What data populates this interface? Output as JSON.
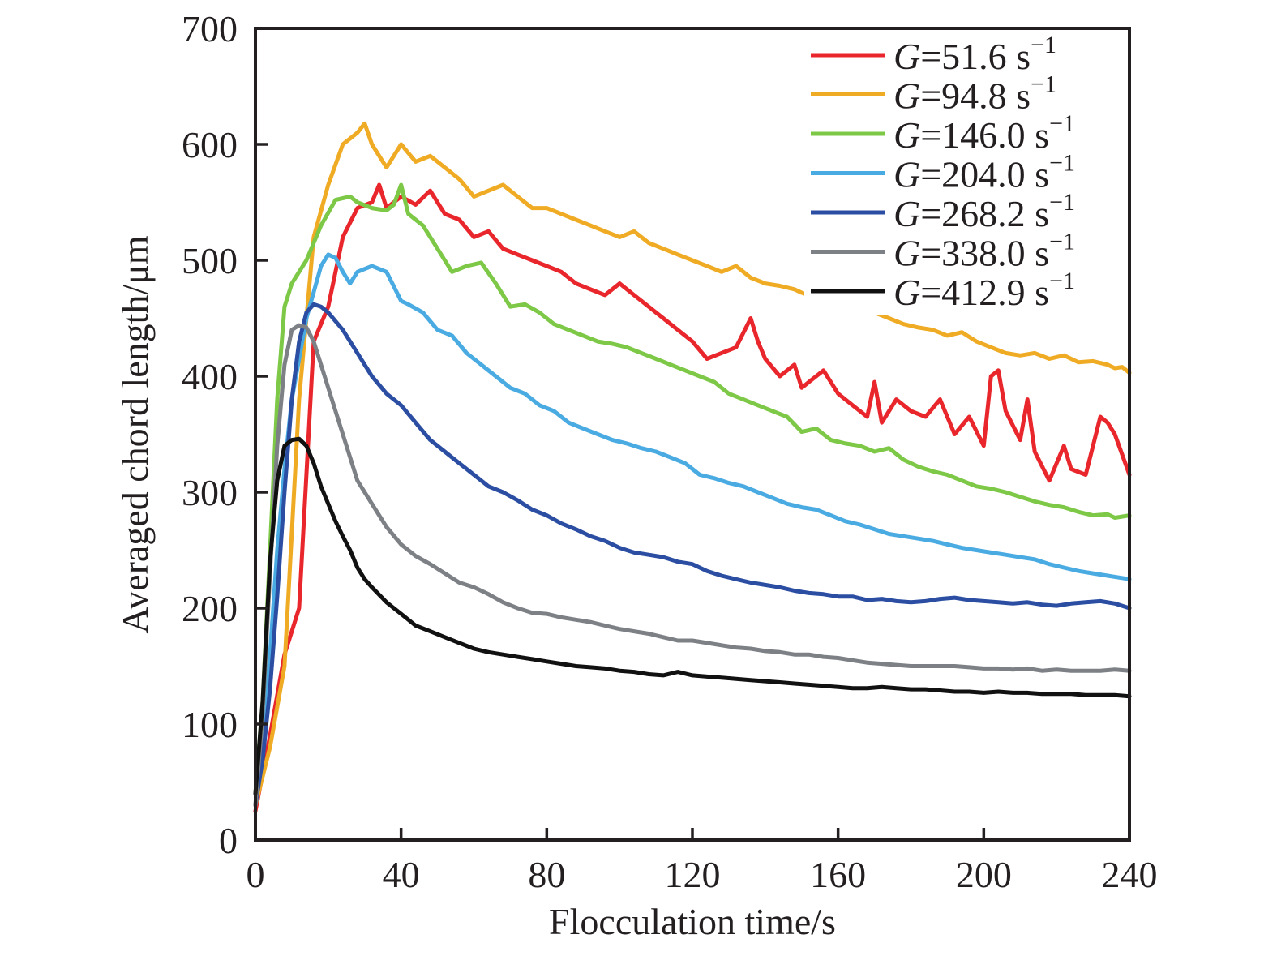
{
  "chart_data": {
    "type": "line",
    "title": "",
    "xlabel": "Flocculation time/s",
    "ylabel": "Averaged chord length/μm",
    "xlim": [
      0,
      240
    ],
    "ylim": [
      0,
      700
    ],
    "xticks": [
      0,
      40,
      80,
      120,
      160,
      200,
      240
    ],
    "yticks": [
      0,
      100,
      200,
      300,
      400,
      500,
      600,
      700
    ],
    "grid": false,
    "legend_position": "top-right",
    "legend_symbol": "G",
    "legend_unit": "s",
    "legend_unit_exp": "−1",
    "series": [
      {
        "name": "G=51.6 s−1",
        "g_value": "51.6",
        "color": "#e8262b",
        "x": [
          0,
          4,
          8,
          12,
          16,
          20,
          24,
          28,
          32,
          34,
          36,
          40,
          44,
          48,
          52,
          56,
          60,
          64,
          68,
          72,
          76,
          80,
          84,
          88,
          92,
          96,
          100,
          104,
          108,
          112,
          116,
          120,
          124,
          128,
          132,
          136,
          138,
          140,
          144,
          148,
          150,
          152,
          156,
          160,
          164,
          168,
          170,
          172,
          176,
          180,
          184,
          188,
          192,
          196,
          200,
          202,
          204,
          206,
          210,
          212,
          214,
          218,
          222,
          224,
          228,
          232,
          234,
          236,
          240
        ],
        "y": [
          25,
          90,
          160,
          200,
          430,
          460,
          520,
          545,
          550,
          565,
          545,
          555,
          548,
          560,
          540,
          535,
          520,
          525,
          510,
          505,
          500,
          495,
          490,
          480,
          475,
          470,
          480,
          470,
          460,
          450,
          440,
          430,
          415,
          420,
          425,
          450,
          430,
          415,
          400,
          410,
          390,
          395,
          405,
          385,
          375,
          365,
          395,
          360,
          380,
          370,
          365,
          380,
          350,
          365,
          340,
          400,
          405,
          370,
          345,
          380,
          335,
          310,
          340,
          320,
          315,
          365,
          360,
          350,
          315
        ]
      },
      {
        "name": "G=94.8 s−1",
        "g_value": "94.8",
        "color": "#f0ab24",
        "x": [
          0,
          4,
          8,
          12,
          16,
          20,
          24,
          28,
          30,
          32,
          36,
          40,
          44,
          48,
          52,
          56,
          60,
          64,
          68,
          72,
          76,
          80,
          84,
          88,
          92,
          96,
          100,
          104,
          108,
          112,
          116,
          120,
          124,
          128,
          132,
          136,
          140,
          144,
          148,
          150,
          152,
          170,
          174,
          178,
          182,
          186,
          190,
          194,
          198,
          202,
          206,
          210,
          214,
          218,
          222,
          226,
          230,
          234,
          236,
          238,
          240
        ],
        "y": [
          30,
          80,
          150,
          380,
          520,
          565,
          600,
          610,
          618,
          600,
          580,
          600,
          585,
          590,
          580,
          570,
          555,
          560,
          565,
          555,
          545,
          545,
          540,
          535,
          530,
          525,
          520,
          525,
          515,
          510,
          505,
          500,
          495,
          490,
          495,
          485,
          480,
          478,
          475,
          472,
          470,
          455,
          450,
          445,
          442,
          440,
          435,
          438,
          430,
          425,
          420,
          418,
          420,
          415,
          418,
          412,
          413,
          410,
          407,
          408,
          403
        ]
      },
      {
        "name": "G=146.0 s−1",
        "g_value": "146.0",
        "color": "#7dc846",
        "x": [
          0,
          2,
          4,
          6,
          8,
          10,
          14,
          18,
          22,
          26,
          28,
          32,
          36,
          38,
          40,
          42,
          46,
          50,
          54,
          58,
          62,
          66,
          70,
          74,
          78,
          82,
          86,
          90,
          94,
          98,
          102,
          106,
          110,
          114,
          118,
          122,
          126,
          130,
          134,
          138,
          142,
          146,
          150,
          154,
          158,
          162,
          166,
          170,
          174,
          178,
          182,
          186,
          190,
          194,
          198,
          202,
          206,
          210,
          214,
          218,
          222,
          226,
          230,
          234,
          236,
          240
        ],
        "y": [
          40,
          120,
          250,
          380,
          460,
          480,
          500,
          530,
          552,
          555,
          550,
          545,
          543,
          548,
          565,
          540,
          530,
          510,
          490,
          495,
          498,
          480,
          460,
          462,
          455,
          445,
          440,
          435,
          430,
          428,
          425,
          420,
          415,
          410,
          405,
          400,
          395,
          385,
          380,
          375,
          370,
          365,
          352,
          355,
          345,
          342,
          340,
          335,
          338,
          328,
          322,
          318,
          315,
          310,
          305,
          303,
          300,
          296,
          292,
          289,
          287,
          283,
          280,
          281,
          278,
          280
        ]
      },
      {
        "name": "G=204.0 s−1",
        "g_value": "204.0",
        "color": "#4aabe2",
        "x": [
          0,
          2,
          4,
          6,
          8,
          10,
          14,
          18,
          20,
          22,
          24,
          26,
          28,
          32,
          36,
          40,
          42,
          46,
          50,
          54,
          58,
          62,
          66,
          70,
          74,
          78,
          82,
          86,
          90,
          94,
          98,
          102,
          106,
          110,
          114,
          118,
          120,
          122,
          126,
          130,
          134,
          138,
          142,
          146,
          150,
          154,
          158,
          162,
          166,
          170,
          174,
          178,
          182,
          186,
          190,
          194,
          198,
          202,
          206,
          210,
          214,
          218,
          222,
          226,
          230,
          234,
          238,
          240
        ],
        "y": [
          30,
          80,
          160,
          250,
          320,
          380,
          450,
          495,
          505,
          502,
          490,
          480,
          490,
          495,
          490,
          465,
          462,
          455,
          440,
          435,
          420,
          410,
          400,
          390,
          385,
          375,
          370,
          360,
          355,
          350,
          345,
          342,
          338,
          335,
          330,
          325,
          320,
          315,
          312,
          308,
          305,
          300,
          295,
          290,
          287,
          285,
          280,
          275,
          272,
          268,
          264,
          262,
          260,
          258,
          255,
          252,
          250,
          248,
          246,
          244,
          242,
          238,
          235,
          232,
          230,
          228,
          226,
          225
        ]
      },
      {
        "name": "G=268.2 s−1",
        "g_value": "268.2",
        "color": "#2b4ea3",
        "x": [
          0,
          2,
          4,
          6,
          8,
          10,
          12,
          14,
          16,
          18,
          20,
          24,
          28,
          32,
          36,
          40,
          44,
          48,
          52,
          56,
          60,
          64,
          68,
          72,
          76,
          80,
          84,
          88,
          92,
          96,
          100,
          104,
          108,
          112,
          116,
          120,
          124,
          128,
          132,
          136,
          140,
          144,
          148,
          152,
          156,
          160,
          164,
          168,
          172,
          176,
          180,
          184,
          188,
          192,
          196,
          200,
          204,
          208,
          212,
          216,
          220,
          224,
          228,
          232,
          236,
          240
        ],
        "y": [
          30,
          70,
          130,
          210,
          300,
          380,
          430,
          455,
          462,
          460,
          455,
          440,
          420,
          400,
          385,
          375,
          360,
          345,
          335,
          325,
          315,
          305,
          300,
          293,
          285,
          280,
          273,
          268,
          262,
          258,
          252,
          248,
          246,
          244,
          240,
          238,
          232,
          228,
          225,
          222,
          220,
          218,
          215,
          213,
          212,
          210,
          210,
          207,
          208,
          206,
          205,
          206,
          208,
          209,
          207,
          206,
          205,
          204,
          205,
          203,
          202,
          204,
          205,
          206,
          204,
          200
        ]
      },
      {
        "name": "G=338.0 s−1",
        "g_value": "338.0",
        "color": "#7d8085",
        "x": [
          0,
          2,
          4,
          6,
          8,
          10,
          12,
          14,
          16,
          18,
          20,
          22,
          24,
          26,
          28,
          32,
          36,
          40,
          44,
          48,
          52,
          56,
          60,
          64,
          68,
          72,
          76,
          80,
          84,
          88,
          92,
          96,
          100,
          104,
          108,
          112,
          116,
          120,
          124,
          128,
          132,
          136,
          140,
          144,
          148,
          152,
          156,
          160,
          164,
          168,
          172,
          176,
          180,
          184,
          188,
          192,
          196,
          200,
          204,
          208,
          212,
          216,
          220,
          224,
          228,
          232,
          236,
          240
        ],
        "y": [
          30,
          110,
          230,
          340,
          410,
          440,
          444,
          442,
          430,
          410,
          390,
          370,
          350,
          330,
          310,
          290,
          270,
          255,
          245,
          238,
          230,
          222,
          218,
          212,
          205,
          200,
          196,
          195,
          192,
          190,
          188,
          185,
          182,
          180,
          178,
          175,
          172,
          172,
          170,
          168,
          166,
          165,
          163,
          162,
          160,
          160,
          158,
          157,
          155,
          153,
          152,
          151,
          150,
          150,
          150,
          150,
          149,
          148,
          148,
          147,
          148,
          146,
          147,
          146,
          146,
          146,
          147,
          146
        ]
      },
      {
        "name": "G=412.9 s−1",
        "g_value": "412.9",
        "color": "#111111",
        "x": [
          0,
          2,
          4,
          6,
          8,
          10,
          12,
          14,
          16,
          18,
          20,
          22,
          24,
          26,
          28,
          30,
          32,
          36,
          40,
          44,
          48,
          52,
          56,
          60,
          64,
          68,
          72,
          76,
          80,
          84,
          88,
          92,
          96,
          100,
          104,
          108,
          112,
          116,
          120,
          124,
          128,
          132,
          136,
          140,
          144,
          148,
          152,
          156,
          160,
          164,
          168,
          172,
          176,
          180,
          184,
          188,
          192,
          196,
          200,
          204,
          208,
          212,
          216,
          220,
          224,
          228,
          232,
          236,
          240
        ],
        "y": [
          40,
          120,
          240,
          310,
          340,
          345,
          346,
          340,
          325,
          305,
          290,
          275,
          262,
          250,
          235,
          225,
          218,
          205,
          195,
          185,
          180,
          175,
          170,
          165,
          162,
          160,
          158,
          156,
          154,
          152,
          150,
          149,
          148,
          146,
          145,
          143,
          142,
          145,
          142,
          141,
          140,
          139,
          138,
          137,
          136,
          135,
          134,
          133,
          132,
          131,
          131,
          132,
          131,
          130,
          130,
          129,
          128,
          128,
          127,
          128,
          127,
          127,
          126,
          126,
          126,
          125,
          125,
          125,
          124
        ]
      }
    ]
  }
}
